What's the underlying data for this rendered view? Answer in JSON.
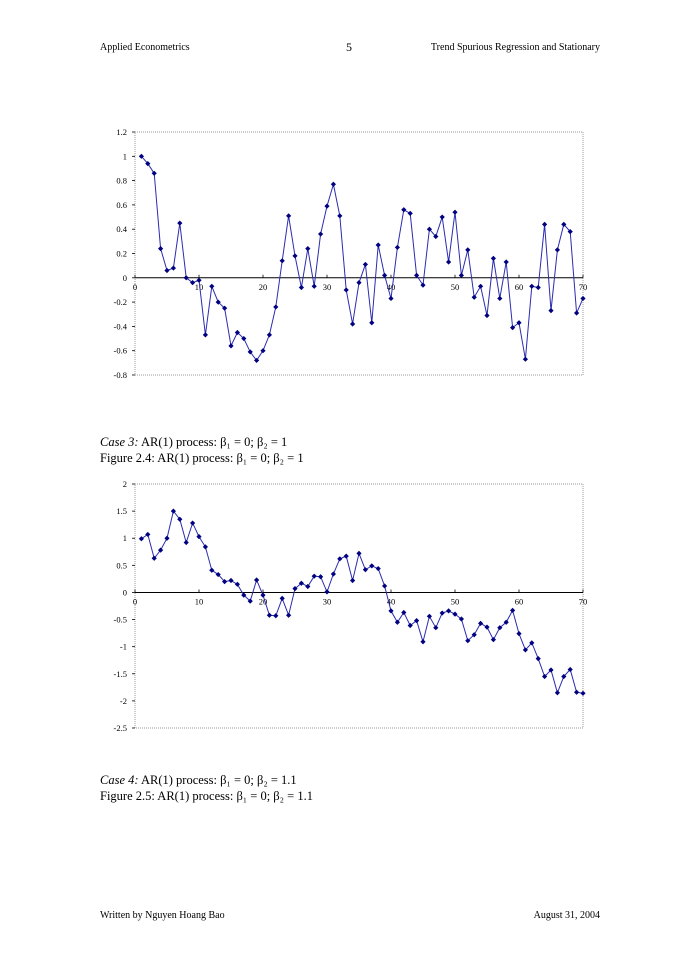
{
  "header": {
    "left": "Applied Econometrics",
    "page_number": "5",
    "right": "Trend Spurious Regression and Stationary"
  },
  "captions": {
    "case3": {
      "label": "Case 3:",
      "text": " AR(1) process: β₁ = 0; β₂ = 1"
    },
    "figure24": "Figure 2.4: AR(1) process: β₁ = 0; β₂ = 1",
    "case4": {
      "label": "Case 4:",
      "text": " AR(1) process: β₁ = 0; β₂ = 1.1"
    },
    "figure25": "Figure 2.5: AR(1) process: β₁ = 0; β₂ = 1.1"
  },
  "footer": {
    "left": "Written by Nguyen Hoang Bao",
    "right": "August 31, 2004"
  },
  "colors": {
    "line": "#2b2bb0",
    "marker": "#000080",
    "zero_line": "#000000",
    "border": "#999999"
  },
  "chart_data": [
    {
      "type": "line",
      "title": "",
      "xlabel": "",
      "ylabel": "",
      "xlim": [
        0,
        70
      ],
      "ylim": [
        -0.8,
        1.2
      ],
      "xticks": [
        "0",
        "10",
        "20",
        "30",
        "40",
        "50",
        "60",
        "70"
      ],
      "yticks": [
        "1.2",
        "1",
        "0.8",
        "0.6",
        "0.4",
        "0.2",
        "0",
        "-0.2",
        "-0.4",
        "-0.6",
        "-0.8"
      ],
      "grid": false,
      "x_start": 1,
      "values": [
        1.0,
        0.94,
        0.86,
        0.24,
        0.06,
        0.08,
        0.45,
        0.0,
        -0.04,
        -0.02,
        -0.47,
        -0.07,
        -0.2,
        -0.25,
        -0.56,
        -0.45,
        -0.5,
        -0.61,
        -0.68,
        -0.6,
        -0.47,
        -0.24,
        0.14,
        0.51,
        0.18,
        -0.08,
        0.24,
        -0.07,
        0.36,
        0.59,
        0.77,
        0.51,
        -0.1,
        -0.38,
        -0.04,
        0.11,
        -0.37,
        0.27,
        0.02,
        -0.17,
        0.25,
        0.56,
        0.53,
        0.02,
        -0.06,
        0.4,
        0.34,
        0.5,
        0.13,
        0.54,
        0.02,
        0.23,
        -0.16,
        -0.07,
        -0.31,
        0.16,
        -0.17,
        0.13,
        -0.41,
        -0.37,
        -0.67,
        -0.07,
        -0.08,
        0.44,
        -0.27,
        0.23,
        0.44,
        0.38,
        -0.29,
        -0.17
      ]
    },
    {
      "type": "line",
      "title": "",
      "xlabel": "",
      "ylabel": "",
      "xlim": [
        0,
        70
      ],
      "ylim": [
        -2.5,
        2
      ],
      "xticks": [
        "0",
        "10",
        "20",
        "30",
        "40",
        "50",
        "60",
        "70"
      ],
      "yticks": [
        "2",
        "1.5",
        "1",
        "0.5",
        "0",
        "-0.5",
        "-1",
        "-1.5",
        "-2",
        "-2.5"
      ],
      "grid": false,
      "x_start": 1,
      "values": [
        0.99,
        1.07,
        0.63,
        0.78,
        1.0,
        1.5,
        1.35,
        0.92,
        1.28,
        1.03,
        0.84,
        0.41,
        0.33,
        0.2,
        0.22,
        0.15,
        -0.05,
        -0.16,
        0.23,
        -0.05,
        -0.42,
        -0.43,
        -0.11,
        -0.42,
        0.07,
        0.17,
        0.11,
        0.3,
        0.29,
        0.01,
        0.34,
        0.62,
        0.67,
        0.22,
        0.72,
        0.42,
        0.49,
        0.44,
        0.12,
        -0.34,
        -0.55,
        -0.37,
        -0.61,
        -0.52,
        -0.91,
        -0.44,
        -0.65,
        -0.38,
        -0.34,
        -0.4,
        -0.49,
        -0.89,
        -0.78,
        -0.57,
        -0.64,
        -0.87,
        -0.65,
        -0.55,
        -0.33,
        -0.76,
        -1.06,
        -0.93,
        -1.22,
        -1.55,
        -1.43,
        -1.85,
        -1.55,
        -1.42,
        -1.84,
        -1.86
      ]
    }
  ]
}
